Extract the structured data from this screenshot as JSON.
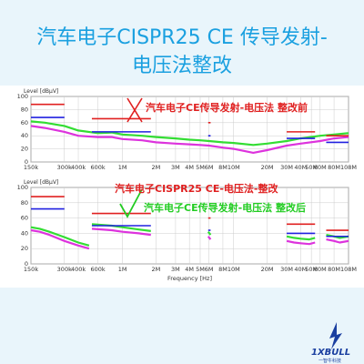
{
  "title_line1": "汽车电子CISPR25 CE 传导发射-",
  "title_line2": "电压法整改",
  "overlay_top": "汽车电子CE传导发射-电压法  整改前",
  "overlay_middle": "汽车电子CISPR25 CE-电压法-整改",
  "overlay_bottom": "汽车电子CE传导发射-电压法 整改后",
  "logo_text": "1XBULL",
  "logo_subtext": "一智牛科技",
  "colors": {
    "title": "#1aa0e0",
    "overlay_red": "#e02020",
    "overlay_green": "#22cc22",
    "limit_red": "#e02020",
    "limit_blue": "#2020e0",
    "trace_green": "#33dd33",
    "trace_magenta": "#dd33dd"
  },
  "chart_data": [
    {
      "type": "line",
      "ylabel": "Level [dBµV]",
      "xlabel": "",
      "xscale": "log",
      "xlim": [
        150000,
        108000000
      ],
      "ylim": [
        0,
        100
      ],
      "yticks": [
        0,
        20,
        40,
        60,
        80,
        100
      ],
      "ytick_labels": [
        "0",
        "20",
        "40",
        "60",
        "80",
        "100"
      ],
      "xticks": [
        150000,
        300000,
        400000,
        600000,
        1000000,
        2000000,
        3000000,
        4000000,
        5000000,
        6000000,
        8000000,
        10000000,
        20000000,
        30000000,
        40000000,
        50000000,
        60000000,
        80000000,
        108000000
      ],
      "xtick_labels": [
        "150k",
        "300k",
        "400k",
        "600k",
        "1M",
        "2M",
        "3M",
        "4M",
        "5M",
        "6M",
        "8M",
        "10M",
        "20M",
        "30M",
        "40M",
        "50M",
        "60M",
        "80M",
        "108M"
      ],
      "grid": true,
      "series": [
        {
          "color": "#33dd33",
          "x": [
            150000,
            200000,
            300000,
            400000,
            600000,
            800000,
            1000000,
            1500000,
            2000000,
            3000000,
            4000000,
            5000000,
            6000000,
            8000000,
            10000000,
            15000000,
            20000000,
            30000000,
            40000000,
            60000000,
            80000000,
            108000000
          ],
          "values": [
            62,
            60,
            55,
            48,
            44,
            45,
            42,
            40,
            38,
            36,
            34,
            33,
            32,
            30,
            29,
            26,
            28,
            32,
            36,
            40,
            42,
            44
          ]
        },
        {
          "color": "#dd33dd",
          "x": [
            150000,
            200000,
            300000,
            400000,
            600000,
            800000,
            1000000,
            1500000,
            2000000,
            3000000,
            4000000,
            5000000,
            6000000,
            8000000,
            10000000,
            15000000,
            20000000,
            30000000,
            40000000,
            60000000,
            80000000,
            108000000
          ],
          "values": [
            55,
            52,
            46,
            40,
            38,
            38,
            35,
            33,
            30,
            28,
            27,
            26,
            25,
            22,
            20,
            14,
            18,
            25,
            28,
            32,
            36,
            38
          ]
        }
      ],
      "limits": [
        {
          "color": "#e02020",
          "segments": [
            [
              150000,
              300000,
              88
            ],
            [
              530000,
              1800000,
              66
            ],
            [
              5900000,
              6200000,
              60
            ],
            [
              30000000,
              54000000,
              46
            ],
            [
              68000000,
              108000000,
              40
            ]
          ]
        },
        {
          "color": "#2020e0",
          "segments": [
            [
              150000,
              300000,
              68
            ],
            [
              530000,
              1800000,
              46
            ],
            [
              5900000,
              6200000,
              40
            ],
            [
              30000000,
              54000000,
              36
            ],
            [
              68000000,
              108000000,
              30
            ]
          ]
        }
      ]
    },
    {
      "type": "line",
      "ylabel": "Level [dBµV]",
      "xlabel": "Frequency [Hz]",
      "xscale": "log",
      "xlim": [
        150000,
        108000000
      ],
      "ylim": [
        0,
        100
      ],
      "yticks": [
        0,
        20,
        40,
        60,
        80,
        100
      ],
      "ytick_labels": [
        "0",
        "20",
        "40",
        "60",
        "80",
        "100"
      ],
      "xticks": [
        150000,
        300000,
        400000,
        600000,
        1000000,
        2000000,
        3000000,
        4000000,
        5000000,
        6000000,
        8000000,
        10000000,
        20000000,
        30000000,
        40000000,
        50000000,
        60000000,
        80000000,
        108000000
      ],
      "xtick_labels": [
        "150k",
        "300k",
        "400k",
        "600k",
        "1M",
        "2M",
        "3M",
        "4M",
        "5M",
        "6M",
        "8M",
        "10M",
        "20M",
        "30M",
        "40M",
        "50M",
        "60M",
        "80M",
        "108M"
      ],
      "grid": true,
      "series": [
        {
          "color": "#33dd33",
          "x": [
            150000,
            180000,
            220000,
            300000,
            400000,
            500000
          ],
          "values": [
            48,
            46,
            42,
            35,
            28,
            24
          ]
        },
        {
          "color": "#33dd33",
          "x": [
            530000,
            800000,
            1000000,
            1400000,
            1800000
          ],
          "values": [
            52,
            50,
            48,
            45,
            43
          ]
        },
        {
          "color": "#33dd33",
          "x": [
            5900000,
            6050000,
            6200000
          ],
          "values": [
            42,
            40,
            38
          ]
        },
        {
          "color": "#33dd33",
          "x": [
            30000000,
            35000000,
            40000000,
            48000000,
            54000000
          ],
          "values": [
            36,
            34,
            33,
            32,
            34
          ]
        },
        {
          "color": "#33dd33",
          "x": [
            68000000,
            80000000,
            90000000,
            108000000
          ],
          "values": [
            38,
            36,
            34,
            36
          ]
        },
        {
          "color": "#dd33dd",
          "x": [
            150000,
            180000,
            220000,
            300000,
            400000,
            500000
          ],
          "values": [
            44,
            42,
            38,
            30,
            24,
            20
          ]
        },
        {
          "color": "#dd33dd",
          "x": [
            530000,
            800000,
            1000000,
            1400000,
            1800000
          ],
          "values": [
            46,
            44,
            42,
            40,
            38
          ]
        },
        {
          "color": "#dd33dd",
          "x": [
            5900000,
            6050000,
            6200000
          ],
          "values": [
            36,
            34,
            32
          ]
        },
        {
          "color": "#dd33dd",
          "x": [
            30000000,
            35000000,
            40000000,
            48000000,
            54000000
          ],
          "values": [
            30,
            28,
            27,
            26,
            28
          ]
        },
        {
          "color": "#dd33dd",
          "x": [
            68000000,
            80000000,
            90000000,
            108000000
          ],
          "values": [
            32,
            30,
            28,
            30
          ]
        }
      ],
      "limits": [
        {
          "color": "#e02020",
          "segments": [
            [
              150000,
              300000,
              88
            ],
            [
              530000,
              1800000,
              66
            ],
            [
              5900000,
              6200000,
              60
            ],
            [
              30000000,
              54000000,
              52
            ],
            [
              68000000,
              108000000,
              44
            ]
          ]
        },
        {
          "color": "#2020e0",
          "segments": [
            [
              150000,
              300000,
              72
            ],
            [
              530000,
              1800000,
              50
            ],
            [
              5900000,
              6200000,
              44
            ],
            [
              30000000,
              54000000,
              40
            ],
            [
              68000000,
              108000000,
              36
            ]
          ]
        }
      ]
    }
  ]
}
